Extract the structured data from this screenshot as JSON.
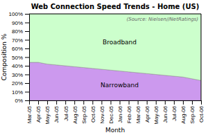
{
  "chart_data": {
    "type": "area",
    "stacked": true,
    "title": "Web Connection Speed Trends - Home (US)",
    "x_label": "Month",
    "y_label": "Composition %",
    "annotations": [
      "(Source: Nielsen//NetRatings)"
    ],
    "categories": [
      "Mar-05",
      "Apr-05",
      "May-05",
      "Jun-05",
      "Jul-05",
      "Aug-05",
      "Sep-05",
      "Oct-05",
      "Nov-05",
      "Dec-05",
      "Jan-06",
      "Feb-06",
      "Mar-06",
      "Apr-06",
      "May-06",
      "Jun-06",
      "Jul-06",
      "Aug-06",
      "Sep-06",
      "Oct-06"
    ],
    "series": [
      {
        "name": "Narrowband",
        "color": "#cc99ee",
        "values": [
          44,
          44,
          42,
          41,
          40,
          39,
          38,
          37,
          36,
          35,
          34,
          33,
          32,
          31,
          30,
          29,
          28,
          27,
          25,
          23
        ]
      },
      {
        "name": "Broadband",
        "color": "#ccffcc",
        "values": [
          56,
          56,
          58,
          59,
          60,
          61,
          62,
          63,
          64,
          65,
          66,
          67,
          68,
          69,
          70,
          71,
          72,
          73,
          75,
          77
        ]
      }
    ],
    "ylim": [
      0,
      100
    ],
    "yticks": [
      {
        "value": 0,
        "label": "0%"
      },
      {
        "value": 10,
        "label": "10%"
      },
      {
        "value": 20,
        "label": "20%"
      },
      {
        "value": 30,
        "label": "30%"
      },
      {
        "value": 40,
        "label": "40%"
      },
      {
        "value": 50,
        "label": "50%"
      },
      {
        "value": 60,
        "label": "60%"
      },
      {
        "value": 70,
        "label": "70%"
      },
      {
        "value": 80,
        "label": "80%"
      },
      {
        "value": 90,
        "label": "90%"
      },
      {
        "value": 100,
        "label": "100%"
      }
    ],
    "grid": false
  }
}
